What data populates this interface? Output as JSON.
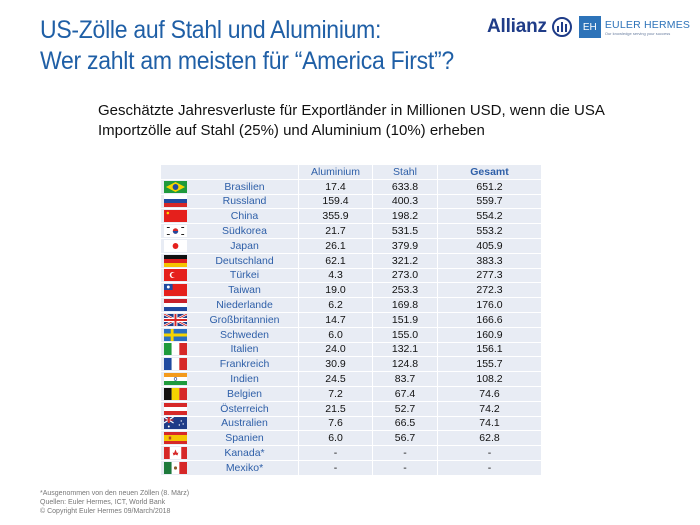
{
  "header": {
    "title_line1": "US-Zölle auf Stahl und Aluminium:",
    "title_line2": "Wer zahlt am meisten für “America First”?",
    "logo_allianz": "Allianz",
    "logo_eh": "EH",
    "logo_euler_hermes": "EULER HERMES",
    "logo_tagline": "Our knowledge serving your success"
  },
  "subtitle_line1": "Geschätzte Jahresverluste für Exportländer in Millionen USD, wenn die USA",
  "subtitle_line2": "Importzölle auf Stahl (25%) und Aluminium (10%) erheben",
  "table": {
    "columns": [
      "",
      "",
      "Aluminium",
      "Stahl",
      "Gesamt"
    ],
    "rows": [
      {
        "flag": "brazil-flag",
        "country": "Brasilien",
        "aluminium": "17.4",
        "stahl": "633.8",
        "gesamt": "651.2"
      },
      {
        "flag": "russia-flag",
        "country": "Russland",
        "aluminium": "159.4",
        "stahl": "400.3",
        "gesamt": "559.7"
      },
      {
        "flag": "china-flag",
        "country": "China",
        "aluminium": "355.9",
        "stahl": "198.2",
        "gesamt": "554.2"
      },
      {
        "flag": "south-korea-flag",
        "country": "Südkorea",
        "aluminium": "21.7",
        "stahl": "531.5",
        "gesamt": "553.2"
      },
      {
        "flag": "japan-flag",
        "country": "Japan",
        "aluminium": "26.1",
        "stahl": "379.9",
        "gesamt": "405.9"
      },
      {
        "flag": "germany-flag",
        "country": "Deutschland",
        "aluminium": "62.1",
        "stahl": "321.2",
        "gesamt": "383.3"
      },
      {
        "flag": "turkey-flag",
        "country": "Türkei",
        "aluminium": "4.3",
        "stahl": "273.0",
        "gesamt": "277.3"
      },
      {
        "flag": "taiwan-flag",
        "country": "Taiwan",
        "aluminium": "19.0",
        "stahl": "253.3",
        "gesamt": "272.3"
      },
      {
        "flag": "netherlands-flag",
        "country": "Niederlande",
        "aluminium": "6.2",
        "stahl": "169.8",
        "gesamt": "176.0"
      },
      {
        "flag": "uk-flag",
        "country": "Großbritannien",
        "aluminium": "14.7",
        "stahl": "151.9",
        "gesamt": "166.6"
      },
      {
        "flag": "sweden-flag",
        "country": "Schweden",
        "aluminium": "6.0",
        "stahl": "155.0",
        "gesamt": "160.9"
      },
      {
        "flag": "italy-flag",
        "country": "Italien",
        "aluminium": "24.0",
        "stahl": "132.1",
        "gesamt": "156.1"
      },
      {
        "flag": "france-flag",
        "country": "Frankreich",
        "aluminium": "30.9",
        "stahl": "124.8",
        "gesamt": "155.7"
      },
      {
        "flag": "india-flag",
        "country": "Indien",
        "aluminium": "24.5",
        "stahl": "83.7",
        "gesamt": "108.2"
      },
      {
        "flag": "belgium-flag",
        "country": "Belgien",
        "aluminium": "7.2",
        "stahl": "67.4",
        "gesamt": "74.6"
      },
      {
        "flag": "austria-flag",
        "country": "Österreich",
        "aluminium": "21.5",
        "stahl": "52.7",
        "gesamt": "74.2"
      },
      {
        "flag": "australia-flag",
        "country": "Australien",
        "aluminium": "7.6",
        "stahl": "66.5",
        "gesamt": "74.1"
      },
      {
        "flag": "spain-flag",
        "country": "Spanien",
        "aluminium": "6.0",
        "stahl": "56.7",
        "gesamt": "62.8"
      },
      {
        "flag": "canada-flag",
        "country": "Kanada*",
        "aluminium": "-",
        "stahl": "-",
        "gesamt": "-"
      },
      {
        "flag": "mexico-flag",
        "country": "Mexiko*",
        "aluminium": "-",
        "stahl": "-",
        "gesamt": "-"
      }
    ]
  },
  "footer": {
    "note": "*Ausgenommen von den neuen Zöllen (8. März)",
    "sources": "Quellen: Euler Hermes, ICT, World Bank",
    "copyright": "© Copyright Euler Hermes 09/March/2018"
  },
  "colors": {
    "title_blue": "#1f5fa6",
    "table_text_blue": "#2e5fa8",
    "row_background": "#e8ecf4",
    "allianz_blue": "#1f3c88",
    "eh_blue": "#2d73b9"
  }
}
